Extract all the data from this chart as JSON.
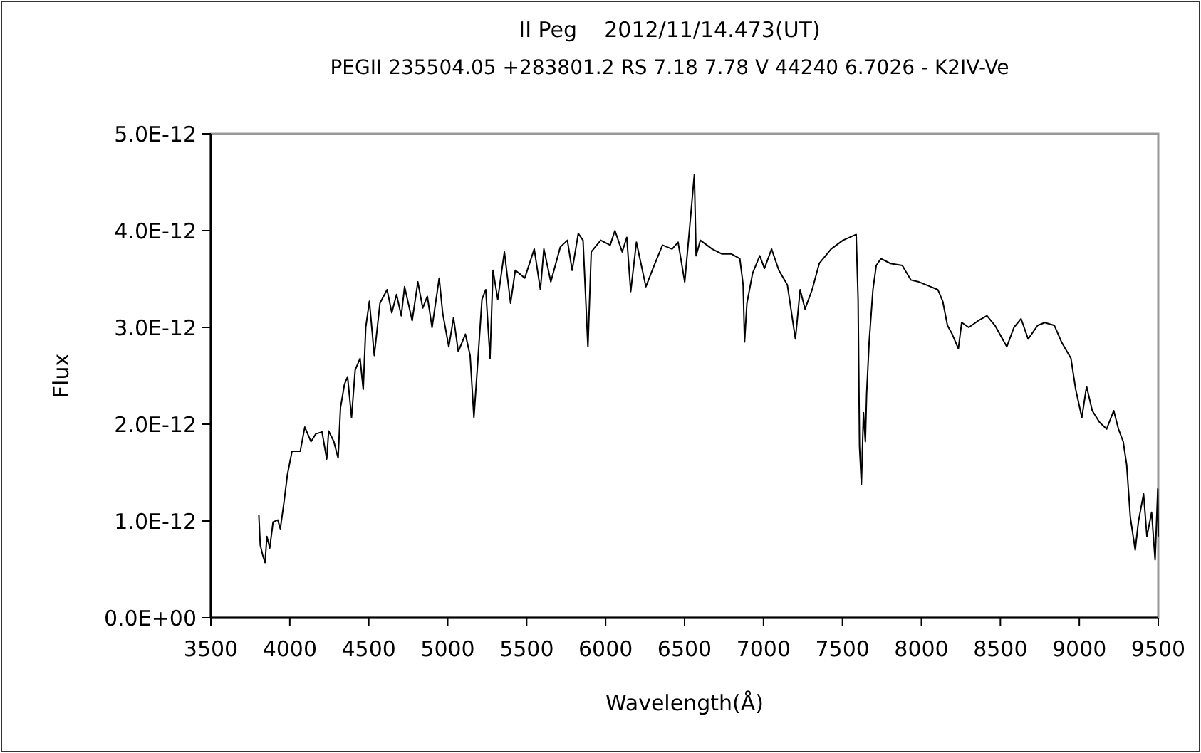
{
  "chart_data": {
    "type": "line",
    "title": "II Peg    2012/11/14.473(UT)",
    "subtitle": "PEGII 235504.05 +283801.2 RS 7.18 7.78 V 44240 6.7026 - K2IV-Ve",
    "xlabel": "Wavelength(Å)",
    "ylabel": "Flux",
    "xlim": [
      3500,
      9500
    ],
    "xticks": [
      3500,
      4000,
      4500,
      5000,
      5500,
      6000,
      6500,
      7000,
      7500,
      8000,
      8500,
      9000,
      9500
    ],
    "ylim": [
      0,
      5e-12
    ],
    "yticks": [
      {
        "value": 0,
        "label": "0.0E+00"
      },
      {
        "value": 1e-12,
        "label": "1.0E-12"
      },
      {
        "value": 2e-12,
        "label": "2.0E-12"
      },
      {
        "value": 3e-12,
        "label": "3.0E-12"
      },
      {
        "value": 4e-12,
        "label": "4.0E-12"
      },
      {
        "value": 5e-12,
        "label": "5.0E-12"
      }
    ],
    "grid": false,
    "marker": "none",
    "line_style": "solid",
    "series": [
      {
        "color": "#000000",
        "x": [
          3804,
          3813,
          3828,
          3843,
          3855,
          3873,
          3894,
          3924,
          3940,
          3963,
          3985,
          4014,
          4066,
          4095,
          4134,
          4165,
          4204,
          4234,
          4246,
          4279,
          4306,
          4321,
          4346,
          4366,
          4391,
          4414,
          4445,
          4465,
          4481,
          4504,
          4535,
          4571,
          4616,
          4646,
          4676,
          4706,
          4727,
          4775,
          4811,
          4842,
          4871,
          4901,
          4946,
          4968,
          5007,
          5037,
          5067,
          5112,
          5142,
          5166,
          5187,
          5217,
          5241,
          5268,
          5287,
          5317,
          5359,
          5398,
          5428,
          5488,
          5548,
          5587,
          5609,
          5653,
          5713,
          5758,
          5788,
          5827,
          5857,
          5888,
          5909,
          5969,
          6029,
          6059,
          6105,
          6134,
          6159,
          6195,
          6255,
          6300,
          6360,
          6421,
          6459,
          6501,
          6525,
          6562,
          6573,
          6600,
          6675,
          6735,
          6795,
          6850,
          6871,
          6880,
          6895,
          6931,
          6976,
          7006,
          7051,
          7097,
          7151,
          7202,
          7232,
          7263,
          7308,
          7353,
          7428,
          7503,
          7587,
          7599,
          7608,
          7620,
          7633,
          7645,
          7653,
          7669,
          7693,
          7714,
          7744,
          7804,
          7879,
          7933,
          7984,
          8059,
          8104,
          8135,
          8165,
          8195,
          8234,
          8255,
          8300,
          8361,
          8415,
          8466,
          8541,
          8586,
          8631,
          8676,
          8736,
          8781,
          8842,
          8887,
          8947,
          8977,
          9016,
          9046,
          9082,
          9128,
          9173,
          9218,
          9248,
          9278,
          9300,
          9323,
          9354,
          9374,
          9407,
          9428,
          9458,
          9480,
          9497,
          9500
        ],
        "values": [
          1.06e-12,
          7.5e-13,
          6.5e-13,
          5.7e-13,
          8.4e-13,
          7.2e-13,
          9.9e-13,
          1.01e-12,
          9.2e-13,
          1.19e-12,
          1.48e-12,
          1.72e-12,
          1.72e-12,
          1.97e-12,
          1.82e-12,
          1.9e-12,
          1.92e-12,
          1.64e-12,
          1.93e-12,
          1.82e-12,
          1.65e-12,
          2.17e-12,
          2.41e-12,
          2.49e-12,
          2.07e-12,
          2.56e-12,
          2.68e-12,
          2.36e-12,
          3e-12,
          3.27e-12,
          2.71e-12,
          3.25e-12,
          3.39e-12,
          3.15e-12,
          3.34e-12,
          3.12e-12,
          3.42e-12,
          3.07e-12,
          3.47e-12,
          3.2e-12,
          3.32e-12,
          3e-12,
          3.51e-12,
          3.15e-12,
          2.8e-12,
          3.1e-12,
          2.75e-12,
          2.93e-12,
          2.71e-12,
          2.07e-12,
          2.56e-12,
          3.29e-12,
          3.39e-12,
          2.68e-12,
          3.59e-12,
          3.29e-12,
          3.78e-12,
          3.25e-12,
          3.59e-12,
          3.51e-12,
          3.81e-12,
          3.39e-12,
          3.81e-12,
          3.47e-12,
          3.83e-12,
          3.9e-12,
          3.59e-12,
          3.97e-12,
          3.9e-12,
          2.8e-12,
          3.78e-12,
          3.9e-12,
          3.85e-12,
          4e-12,
          3.78e-12,
          3.93e-12,
          3.37e-12,
          3.88e-12,
          3.42e-12,
          3.61e-12,
          3.85e-12,
          3.81e-12,
          3.88e-12,
          3.47e-12,
          3.9e-12,
          4.58e-12,
          3.74e-12,
          3.9e-12,
          3.81e-12,
          3.76e-12,
          3.76e-12,
          3.71e-12,
          3.44e-12,
          2.85e-12,
          3.25e-12,
          3.56e-12,
          3.74e-12,
          3.61e-12,
          3.81e-12,
          3.59e-12,
          3.44e-12,
          2.88e-12,
          3.39e-12,
          3.19e-12,
          3.39e-12,
          3.66e-12,
          3.81e-12,
          3.9e-12,
          3.96e-12,
          3.29e-12,
          1.77e-12,
          1.38e-12,
          2.12e-12,
          1.82e-12,
          2.31e-12,
          2.85e-12,
          3.39e-12,
          3.64e-12,
          3.71e-12,
          3.66e-12,
          3.64e-12,
          3.49e-12,
          3.47e-12,
          3.42e-12,
          3.39e-12,
          3.27e-12,
          3.02e-12,
          2.93e-12,
          2.78e-12,
          3.05e-12,
          3e-12,
          3.07e-12,
          3.12e-12,
          3.02e-12,
          2.8e-12,
          3e-12,
          3.09e-12,
          2.88e-12,
          3.02e-12,
          3.05e-12,
          3.02e-12,
          2.85e-12,
          2.68e-12,
          2.36e-12,
          2.07e-12,
          2.39e-12,
          2.14e-12,
          2.02e-12,
          1.95e-12,
          2.14e-12,
          1.95e-12,
          1.82e-12,
          1.58e-12,
          1.04e-12,
          7e-13,
          9.9e-13,
          1.28e-12,
          8.4e-13,
          1.09e-12,
          6e-13,
          1.33e-12,
          8.4e-13
        ]
      }
    ]
  }
}
